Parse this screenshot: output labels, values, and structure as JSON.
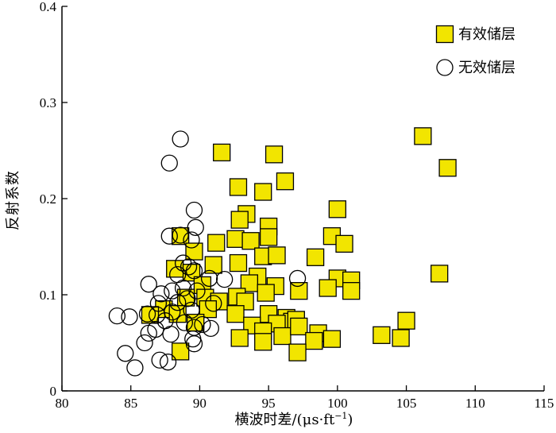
{
  "chart_data": {
    "type": "scatter",
    "xlabel": "横波时差/(μs·ft",
    "xlabel_sup": "−1",
    "xlabel_close": ")",
    "ylabel": "反射系数",
    "xlim": [
      80,
      115
    ],
    "ylim": [
      0,
      0.4
    ],
    "xticks": [
      "80",
      "85",
      "90",
      "95",
      "100",
      "105",
      "110",
      "115"
    ],
    "yticks": [
      "0",
      "0.1",
      "0.2",
      "0.3",
      "0.4"
    ],
    "legend_position": "top-right",
    "colors": {
      "effective": "#f2e500",
      "axis": "#000000"
    },
    "series": [
      {
        "name": "有效储层",
        "marker": "square",
        "points": [
          [
            91.6,
            0.248
          ],
          [
            95.4,
            0.246
          ],
          [
            96.2,
            0.218
          ],
          [
            92.8,
            0.212
          ],
          [
            94.6,
            0.207
          ],
          [
            106.2,
            0.265
          ],
          [
            108.0,
            0.232
          ],
          [
            100.0,
            0.189
          ],
          [
            93.4,
            0.184
          ],
          [
            95.0,
            0.171
          ],
          [
            92.9,
            0.178
          ],
          [
            99.6,
            0.161
          ],
          [
            100.5,
            0.153
          ],
          [
            88.6,
            0.161
          ],
          [
            91.2,
            0.154
          ],
          [
            92.6,
            0.158
          ],
          [
            93.7,
            0.156
          ],
          [
            95.0,
            0.16
          ],
          [
            89.6,
            0.145
          ],
          [
            94.6,
            0.14
          ],
          [
            95.6,
            0.141
          ],
          [
            98.4,
            0.139
          ],
          [
            88.2,
            0.127
          ],
          [
            89.4,
            0.123
          ],
          [
            91.0,
            0.131
          ],
          [
            92.8,
            0.133
          ],
          [
            94.2,
            0.119
          ],
          [
            100.0,
            0.117
          ],
          [
            101.0,
            0.115
          ],
          [
            107.4,
            0.122
          ],
          [
            90.2,
            0.11
          ],
          [
            93.6,
            0.112
          ],
          [
            95.5,
            0.109
          ],
          [
            97.2,
            0.104
          ],
          [
            99.3,
            0.107
          ],
          [
            101.0,
            0.104
          ],
          [
            94.8,
            0.102
          ],
          [
            89.0,
            0.097
          ],
          [
            90.4,
            0.097
          ],
          [
            91.4,
            0.093
          ],
          [
            92.7,
            0.098
          ],
          [
            93.3,
            0.093
          ],
          [
            87.4,
            0.085
          ],
          [
            88.4,
            0.08
          ],
          [
            90.6,
            0.085
          ],
          [
            92.6,
            0.08
          ],
          [
            95.0,
            0.08
          ],
          [
            96.3,
            0.076
          ],
          [
            96.7,
            0.072
          ],
          [
            86.4,
            0.079
          ],
          [
            89.7,
            0.071
          ],
          [
            93.8,
            0.068
          ],
          [
            95.6,
            0.07
          ],
          [
            97.0,
            0.074
          ],
          [
            94.6,
            0.062
          ],
          [
            96.0,
            0.057
          ],
          [
            97.2,
            0.067
          ],
          [
            98.6,
            0.06
          ],
          [
            99.6,
            0.054
          ],
          [
            92.9,
            0.055
          ],
          [
            94.6,
            0.051
          ],
          [
            98.3,
            0.052
          ],
          [
            97.1,
            0.04
          ],
          [
            103.2,
            0.058
          ],
          [
            104.6,
            0.055
          ],
          [
            105.0,
            0.073
          ],
          [
            88.6,
            0.041
          ]
        ]
      },
      {
        "name": "无效储层",
        "marker": "circle",
        "points": [
          [
            88.6,
            0.262
          ],
          [
            87.8,
            0.237
          ],
          [
            89.6,
            0.188
          ],
          [
            89.7,
            0.17
          ],
          [
            88.6,
            0.162
          ],
          [
            87.8,
            0.161
          ],
          [
            89.4,
            0.157
          ],
          [
            88.8,
            0.133
          ],
          [
            89.2,
            0.129
          ],
          [
            89.6,
            0.125
          ],
          [
            88.4,
            0.121
          ],
          [
            86.3,
            0.111
          ],
          [
            87.2,
            0.101
          ],
          [
            88.0,
            0.104
          ],
          [
            88.8,
            0.107
          ],
          [
            90.7,
            0.117
          ],
          [
            91.8,
            0.116
          ],
          [
            97.1,
            0.117
          ],
          [
            87.0,
            0.091
          ],
          [
            88.4,
            0.092
          ],
          [
            89.1,
            0.096
          ],
          [
            89.8,
            0.104
          ],
          [
            91.0,
            0.091
          ],
          [
            89.4,
            0.084
          ],
          [
            88.0,
            0.082
          ],
          [
            86.9,
            0.079
          ],
          [
            86.2,
            0.08
          ],
          [
            84.0,
            0.078
          ],
          [
            84.9,
            0.077
          ],
          [
            87.5,
            0.073
          ],
          [
            88.9,
            0.071
          ],
          [
            90.2,
            0.069
          ],
          [
            89.6,
            0.066
          ],
          [
            86.8,
            0.064
          ],
          [
            86.3,
            0.06
          ],
          [
            87.9,
            0.059
          ],
          [
            89.5,
            0.054
          ],
          [
            90.8,
            0.065
          ],
          [
            86.0,
            0.05
          ],
          [
            84.6,
            0.039
          ],
          [
            87.1,
            0.032
          ],
          [
            87.7,
            0.03
          ],
          [
            85.3,
            0.024
          ],
          [
            89.6,
            0.049
          ]
        ]
      }
    ]
  }
}
